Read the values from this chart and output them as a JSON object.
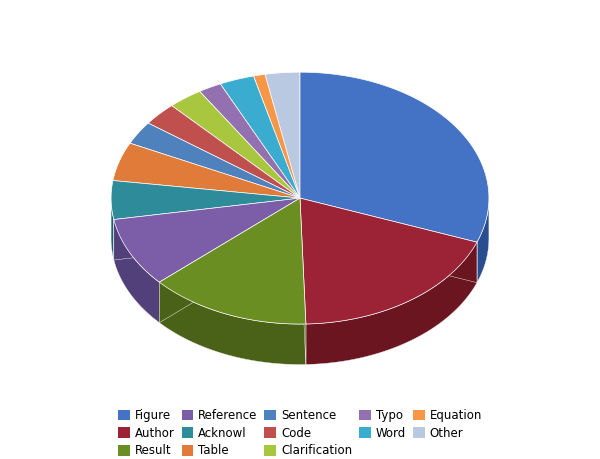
{
  "labels": [
    "Figure",
    "Author",
    "Result",
    "Reference",
    "Acknowl",
    "Table",
    "Sentence",
    "Code",
    "Clarification",
    "Typo",
    "Word",
    "Equation",
    "Other"
  ],
  "sizes": [
    31,
    19,
    14,
    9,
    5,
    5,
    3,
    3,
    3,
    2,
    3,
    1,
    3
  ],
  "colors": [
    "#4472C4",
    "#9B2335",
    "#6B8E23",
    "#7B5EA7",
    "#2E8B9A",
    "#E07B39",
    "#4F81BD",
    "#C0504D",
    "#A9C73E",
    "#9370B0",
    "#3AACCF",
    "#F79646",
    "#B8C9E1"
  ],
  "dark_colors": [
    "#2A4D8F",
    "#6B1520",
    "#4A6218",
    "#52407A",
    "#1C6070",
    "#9E5520",
    "#365A88",
    "#8B3835",
    "#748A2A",
    "#634C7A",
    "#2277A0",
    "#B06A20",
    "#7A90AA"
  ],
  "figsize": [
    6.0,
    4.59
  ],
  "dpi": 100,
  "startangle": 90,
  "legend_ncol": 5,
  "legend_fontsize": 8.5
}
